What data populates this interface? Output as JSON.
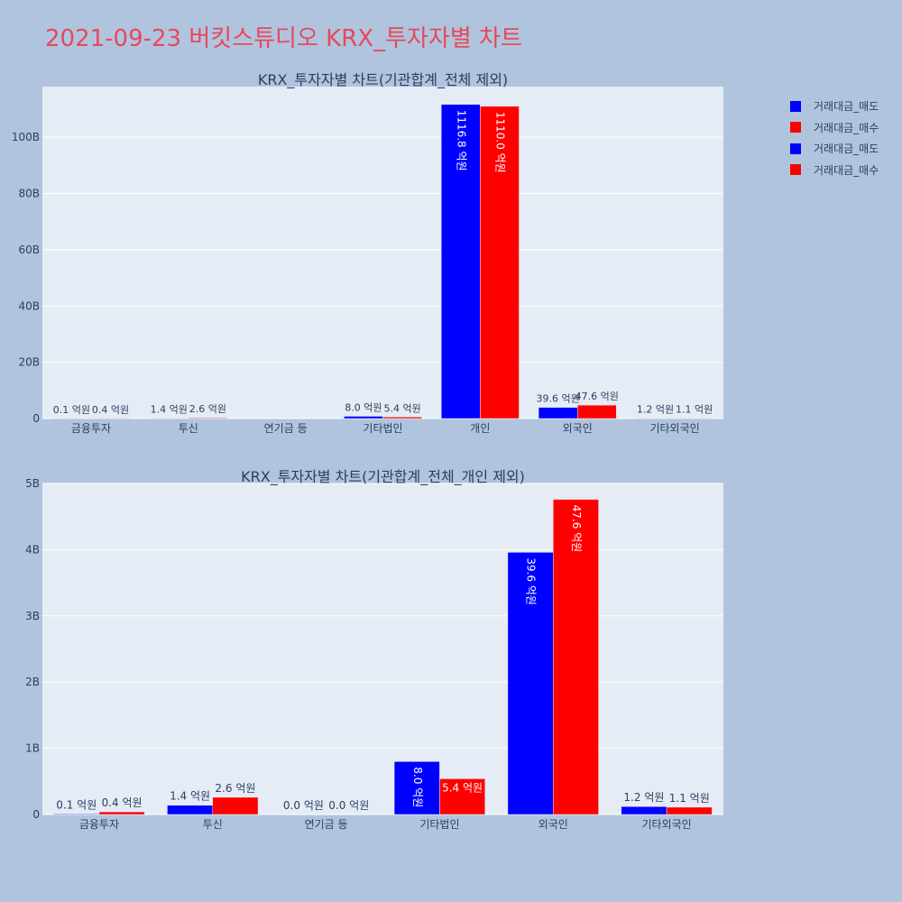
{
  "page_title": "2021-09-23 버킷스튜디오 KRX_투자자별 차트",
  "colors": {
    "sell": "#0000ff",
    "buy": "#ff0000",
    "plot_bg": "#e5ecf6",
    "page_bg": "#b0c4de",
    "title": "#e8485a"
  },
  "legend": [
    {
      "label": "거래대금_매도",
      "color": "#0000ff"
    },
    {
      "label": "거래대금_매수",
      "color": "#ff0000"
    },
    {
      "label": "거래대금_매도",
      "color": "#0000ff"
    },
    {
      "label": "거래대금_매수",
      "color": "#ff0000"
    }
  ],
  "chart_data": [
    {
      "type": "bar",
      "title": "KRX_투자자별 차트(기관합계_전체 제외)",
      "categories": [
        "금융투자",
        "투신",
        "연기금 등",
        "기타법인",
        "개인",
        "외국인",
        "기타외국인"
      ],
      "series": [
        {
          "name": "거래대금_매도",
          "color": "#0000ff",
          "values": [
            0.01,
            0.14,
            0.0,
            0.8,
            111.68,
            3.96,
            0.12
          ],
          "labels": [
            "0.1 억원",
            "1.4 억원",
            "",
            "8.0 억원",
            "1116.8 억원",
            "39.6 억원",
            "1.2 억원"
          ]
        },
        {
          "name": "거래대금_매수",
          "color": "#ff0000",
          "values": [
            0.04,
            0.26,
            0.0,
            0.54,
            111.0,
            4.76,
            0.11
          ],
          "labels": [
            "0.4 억원",
            "2.6 억원",
            "",
            "5.4 억원",
            "1110.0 억원",
            "47.6 억원",
            "1.1 억원"
          ]
        }
      ],
      "yticks": [
        0,
        20,
        40,
        60,
        80,
        100
      ],
      "ytick_labels": [
        "0",
        "20B",
        "40B",
        "60B",
        "80B",
        "100B"
      ],
      "ylim": [
        0,
        118
      ],
      "grid": true
    },
    {
      "type": "bar",
      "title": "KRX_투자자별 차트(기관합계_전체_개인 제외)",
      "categories": [
        "금융투자",
        "투신",
        "연기금 등",
        "기타법인",
        "외국인",
        "기타외국인"
      ],
      "series": [
        {
          "name": "거래대금_매도",
          "color": "#0000ff",
          "values": [
            0.01,
            0.14,
            0.0,
            0.8,
            3.96,
            0.12
          ],
          "labels": [
            "0.1 억원",
            "1.4 억원",
            "0.0 억원",
            "8.0 억원",
            "39.6 억원",
            "1.2 억원"
          ]
        },
        {
          "name": "거래대금_매수",
          "color": "#ff0000",
          "values": [
            0.04,
            0.26,
            0.0,
            0.54,
            4.76,
            0.11
          ],
          "labels": [
            "0.4 억원",
            "2.6 억원",
            "0.0 억원",
            "5.4 억원",
            "47.6 억원",
            "1.1 억원"
          ]
        }
      ],
      "yticks": [
        0,
        1,
        2,
        3,
        4,
        5
      ],
      "ytick_labels": [
        "0",
        "1B",
        "2B",
        "3B",
        "4B",
        "5B"
      ],
      "ylim": [
        0,
        5
      ],
      "grid": true
    }
  ]
}
